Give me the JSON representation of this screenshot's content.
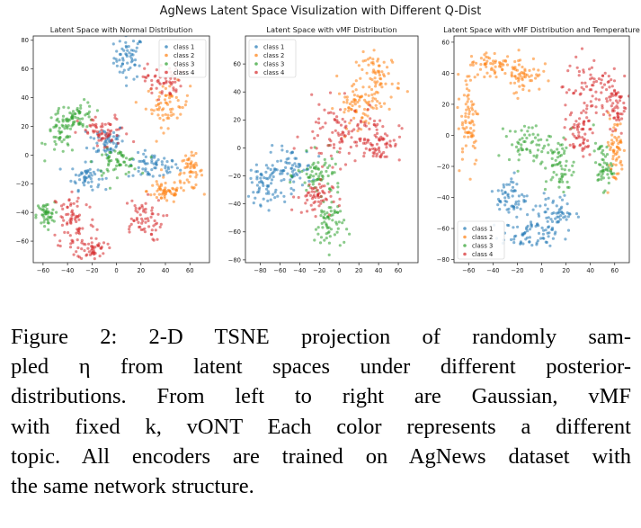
{
  "figure": {
    "title": "AgNews Latent Space Visulization with Different Q-Dist",
    "colors": {
      "class_1": "#1f77b4",
      "class_2": "#ff7f0e",
      "class_3": "#2ca02c",
      "class_4": "#d62728"
    }
  },
  "chart_data": [
    {
      "type": "scatter",
      "title": "Latent Space with Normal Distribution",
      "xlabel": "",
      "ylabel": "",
      "xlim": [
        -68,
        76
      ],
      "ylim": [
        -75,
        83
      ],
      "xticks": [
        -60,
        -40,
        -20,
        0,
        20,
        40,
        60
      ],
      "yticks": [
        -60,
        -40,
        -20,
        0,
        20,
        40,
        60,
        80
      ],
      "grid": false,
      "legend": "top-right",
      "series": [
        {
          "name": "class 1",
          "color": "#1f77b4",
          "clusters": [
            [
              10,
              68,
              8,
              10
            ],
            [
              30,
              -8,
              14,
              6
            ],
            [
              -8,
              10,
              10,
              8
            ],
            [
              -25,
              -15,
              8,
              6
            ]
          ]
        },
        {
          "name": "class 2",
          "color": "#ff7f0e",
          "clusters": [
            [
              42,
              35,
              12,
              10
            ],
            [
              60,
              -12,
              7,
              8
            ],
            [
              40,
              -25,
              10,
              6
            ]
          ]
        },
        {
          "name": "class 3",
          "color": "#2ca02c",
          "clusters": [
            [
              -45,
              15,
              8,
              10
            ],
            [
              -30,
              28,
              8,
              6
            ],
            [
              0,
              -5,
              12,
              6
            ],
            [
              -58,
              -42,
              5,
              6
            ]
          ]
        },
        {
          "name": "class 4",
          "color": "#d62728",
          "clusters": [
            [
              -35,
              -45,
              12,
              15
            ],
            [
              -20,
              -65,
              8,
              5
            ],
            [
              20,
              -45,
              12,
              10
            ],
            [
              38,
              52,
              10,
              8
            ],
            [
              -10,
              15,
              14,
              8
            ]
          ]
        }
      ]
    },
    {
      "type": "scatter",
      "title": "Latent Space with vMF Distribution",
      "xlabel": "",
      "ylabel": "",
      "xlim": [
        -95,
        80
      ],
      "ylim": [
        -82,
        80
      ],
      "xticks": [
        -80,
        -60,
        -40,
        -20,
        0,
        20,
        40,
        60
      ],
      "yticks": [
        -80,
        -60,
        -40,
        -20,
        0,
        20,
        40,
        60
      ],
      "grid": false,
      "legend": "top-left",
      "series": [
        {
          "name": "class 1",
          "color": "#1f77b4",
          "clusters": [
            [
              -75,
              -25,
              10,
              10
            ],
            [
              -50,
              -15,
              15,
              10
            ]
          ]
        },
        {
          "name": "class 2",
          "color": "#ff7f0e",
          "clusters": [
            [
              40,
              50,
              15,
              12
            ],
            [
              20,
              30,
              15,
              10
            ]
          ]
        },
        {
          "name": "class 3",
          "color": "#2ca02c",
          "clusters": [
            [
              -10,
              -55,
              10,
              12
            ],
            [
              -20,
              -20,
              15,
              10
            ]
          ]
        },
        {
          "name": "class 4",
          "color": "#d62728",
          "clusters": [
            [
              0,
              10,
              25,
              15
            ],
            [
              40,
              5,
              15,
              10
            ],
            [
              -25,
              -35,
              12,
              8
            ]
          ]
        }
      ]
    },
    {
      "type": "scatter",
      "title": "Latent Space with vMF Distribution and Temperature",
      "xlabel": "",
      "ylabel": "",
      "xlim": [
        -72,
        72
      ],
      "ylim": [
        -82,
        64
      ],
      "xticks": [
        -60,
        -40,
        -20,
        0,
        20,
        40,
        60
      ],
      "yticks": [
        -80,
        -60,
        -40,
        -20,
        0,
        20,
        40,
        60
      ],
      "grid": false,
      "legend": "bottom-left",
      "series": [
        {
          "name": "class 1",
          "color": "#1f77b4",
          "clusters": [
            [
              -10,
              -65,
              15,
              6
            ],
            [
              10,
              -50,
              12,
              8
            ],
            [
              -25,
              -40,
              8,
              10
            ]
          ]
        },
        {
          "name": "class 2",
          "color": "#ff7f0e",
          "clusters": [
            [
              -60,
              10,
              6,
              20
            ],
            [
              -40,
              45,
              15,
              6
            ],
            [
              -15,
              40,
              10,
              8
            ],
            [
              60,
              -10,
              5,
              15
            ]
          ]
        },
        {
          "name": "class 3",
          "color": "#2ca02c",
          "clusters": [
            [
              -10,
              -5,
              12,
              8
            ],
            [
              15,
              -20,
              8,
              12
            ],
            [
              50,
              -20,
              5,
              10
            ]
          ]
        },
        {
          "name": "class 4",
          "color": "#d62728",
          "clusters": [
            [
              40,
              30,
              15,
              15
            ],
            [
              60,
              20,
              6,
              10
            ],
            [
              30,
              0,
              8,
              10
            ]
          ]
        }
      ]
    }
  ],
  "caption": {
    "lines": [
      "Figure 2:  2-D TSNE projection of randomly sam-",
      "pled η from latent spaces under different posterior-",
      "distributions.  From left to right are Gaussian, vMF",
      "with fixed k, vONT Each color represents a different",
      "topic. All encoders are trained on AgNews dataset with",
      "the same network structure."
    ]
  }
}
